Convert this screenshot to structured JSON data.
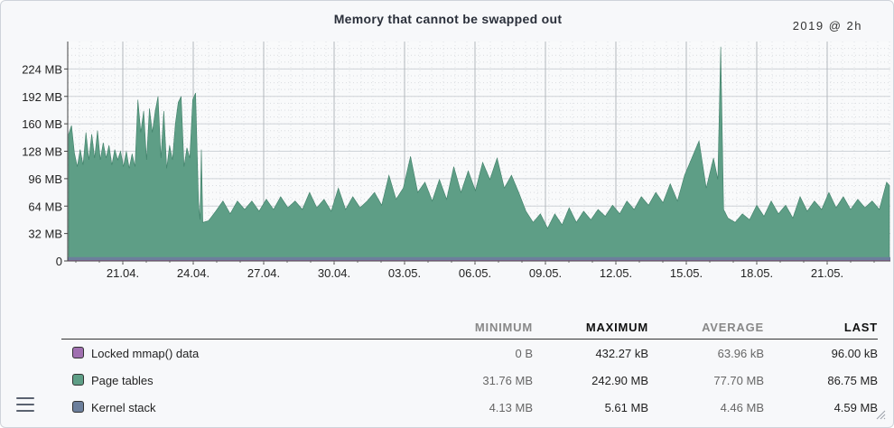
{
  "header": {
    "title": "Memory that cannot be swapped out",
    "period": "2019 @ 2h"
  },
  "icons": {
    "menu": "hamburger-menu-icon",
    "resize": "resize-grip-icon"
  },
  "colors": {
    "page_tables": "#5e9e86",
    "kernel_stack": "#6c7f9c",
    "locked": "#a070b0"
  },
  "chart_data": {
    "type": "area",
    "title": "Memory that cannot be swapped out",
    "y_ticks": [
      "0",
      "32 MB",
      "64 MB",
      "96 MB",
      "128 MB",
      "160 MB",
      "192 MB",
      "224 MB"
    ],
    "ylim": [
      0,
      256
    ],
    "y_unit": "MB",
    "x_ticks": [
      "21.04.",
      "24.04.",
      "27.04.",
      "30.04.",
      "03.05.",
      "06.05.",
      "09.05.",
      "12.05.",
      "15.05.",
      "18.05.",
      "21.05."
    ],
    "x_range_days": [
      -1.7,
      8.7
    ],
    "grid": true,
    "series": [
      {
        "name": "Page tables",
        "color": "#5e9e86",
        "points": [
          [
            -1.7,
            148
          ],
          [
            -1.5,
            158
          ],
          [
            -1.3,
            126
          ],
          [
            -1.1,
            110
          ],
          [
            -0.9,
            130
          ],
          [
            -0.7,
            112
          ],
          [
            -0.5,
            150
          ],
          [
            -0.3,
            118
          ],
          [
            -0.1,
            148
          ],
          [
            0.1,
            120
          ],
          [
            0.3,
            152
          ],
          [
            0.5,
            118
          ],
          [
            0.7,
            138
          ],
          [
            0.9,
            120
          ],
          [
            1.1,
            135
          ],
          [
            1.3,
            112
          ],
          [
            1.5,
            130
          ],
          [
            1.7,
            118
          ],
          [
            1.9,
            128
          ],
          [
            2.1,
            110
          ],
          [
            2.3,
            128
          ],
          [
            2.5,
            108
          ],
          [
            2.7,
            125
          ],
          [
            2.9,
            110
          ],
          [
            3.1,
            188
          ],
          [
            3.3,
            150
          ],
          [
            3.5,
            175
          ],
          [
            3.7,
            118
          ],
          [
            3.9,
            178
          ],
          [
            4.1,
            150
          ],
          [
            4.3,
            175
          ],
          [
            4.5,
            192
          ],
          [
            4.7,
            120
          ],
          [
            4.9,
            175
          ],
          [
            5.1,
            108
          ],
          [
            5.3,
            135
          ],
          [
            5.5,
            118
          ],
          [
            5.7,
            160
          ],
          [
            5.9,
            185
          ],
          [
            6.1,
            192
          ],
          [
            6.3,
            110
          ],
          [
            6.5,
            132
          ],
          [
            6.7,
            120
          ],
          [
            6.9,
            188
          ],
          [
            7.1,
            196
          ],
          [
            7.3,
            70
          ],
          [
            7.4,
            48
          ],
          [
            7.5,
            130
          ],
          [
            7.6,
            45
          ],
          [
            8.0,
            47
          ],
          [
            8.5,
            58
          ],
          [
            9.0,
            70
          ],
          [
            9.5,
            55
          ],
          [
            10.0,
            70
          ],
          [
            10.5,
            60
          ],
          [
            11.0,
            70
          ],
          [
            11.5,
            58
          ],
          [
            12.0,
            72
          ],
          [
            12.5,
            60
          ],
          [
            13.0,
            75
          ],
          [
            13.5,
            62
          ],
          [
            14.0,
            70
          ],
          [
            14.5,
            60
          ],
          [
            15.0,
            80
          ],
          [
            15.5,
            62
          ],
          [
            16.0,
            72
          ],
          [
            16.5,
            58
          ],
          [
            17.0,
            85
          ],
          [
            17.5,
            60
          ],
          [
            18.0,
            75
          ],
          [
            18.5,
            62
          ],
          [
            19.0,
            70
          ],
          [
            19.5,
            80
          ],
          [
            20.0,
            65
          ],
          [
            20.5,
            100
          ],
          [
            21.0,
            72
          ],
          [
            21.5,
            85
          ],
          [
            22.0,
            122
          ],
          [
            22.5,
            80
          ],
          [
            23.0,
            92
          ],
          [
            23.5,
            70
          ],
          [
            24.0,
            95
          ],
          [
            24.5,
            72
          ],
          [
            25.0,
            110
          ],
          [
            25.5,
            80
          ],
          [
            26.0,
            105
          ],
          [
            26.5,
            82
          ],
          [
            27.0,
            115
          ],
          [
            27.5,
            95
          ],
          [
            28.0,
            120
          ],
          [
            28.5,
            85
          ],
          [
            29.0,
            100
          ],
          [
            29.5,
            80
          ],
          [
            30.0,
            58
          ],
          [
            30.5,
            45
          ],
          [
            31.0,
            55
          ],
          [
            31.5,
            38
          ],
          [
            32.0,
            55
          ],
          [
            32.5,
            42
          ],
          [
            33.0,
            62
          ],
          [
            33.5,
            45
          ],
          [
            34.0,
            58
          ],
          [
            34.5,
            48
          ],
          [
            35.0,
            60
          ],
          [
            35.5,
            52
          ],
          [
            36.0,
            65
          ],
          [
            36.5,
            55
          ],
          [
            37.0,
            70
          ],
          [
            37.5,
            60
          ],
          [
            38.0,
            75
          ],
          [
            38.5,
            65
          ],
          [
            39.0,
            80
          ],
          [
            39.5,
            68
          ],
          [
            40.0,
            90
          ],
          [
            40.5,
            70
          ],
          [
            41.0,
            100
          ],
          [
            41.5,
            120
          ],
          [
            42.0,
            140
          ],
          [
            42.5,
            85
          ],
          [
            43.0,
            120
          ],
          [
            43.3,
            95
          ],
          [
            43.5,
            250
          ],
          [
            43.7,
            60
          ],
          [
            44.0,
            50
          ],
          [
            44.5,
            45
          ],
          [
            45.0,
            55
          ],
          [
            45.5,
            48
          ],
          [
            46.0,
            65
          ],
          [
            46.5,
            52
          ],
          [
            47.0,
            70
          ],
          [
            47.5,
            55
          ],
          [
            48.0,
            65
          ],
          [
            48.5,
            50
          ],
          [
            49.0,
            75
          ],
          [
            49.5,
            58
          ],
          [
            50.0,
            70
          ],
          [
            50.5,
            60
          ],
          [
            51.0,
            80
          ],
          [
            51.5,
            62
          ],
          [
            52.0,
            75
          ],
          [
            52.5,
            60
          ],
          [
            53.0,
            72
          ],
          [
            53.5,
            62
          ],
          [
            54.0,
            70
          ],
          [
            54.5,
            60
          ],
          [
            55.0,
            92
          ],
          [
            55.2,
            88
          ]
        ]
      },
      {
        "name": "Kernel stack",
        "color": "#6c7f9c",
        "value": 4.5
      },
      {
        "name": "Locked mmap() data",
        "color": "#a070b0",
        "value": 0.1
      }
    ]
  },
  "legend": {
    "columns": [
      "MINIMUM",
      "MAXIMUM",
      "AVERAGE",
      "LAST"
    ],
    "rows": [
      {
        "name": "Locked mmap() data",
        "color": "#a070b0",
        "min": "0 B",
        "max": "432.27 kB",
        "avg": "63.96 kB",
        "last": "96.00 kB"
      },
      {
        "name": "Page tables",
        "color": "#5e9e86",
        "min": "31.76 MB",
        "max": "242.90 MB",
        "avg": "77.70 MB",
        "last": "86.75 MB"
      },
      {
        "name": "Kernel stack",
        "color": "#6c7f9c",
        "min": "4.13 MB",
        "max": "5.61 MB",
        "avg": "4.46 MB",
        "last": "4.59 MB"
      }
    ]
  }
}
